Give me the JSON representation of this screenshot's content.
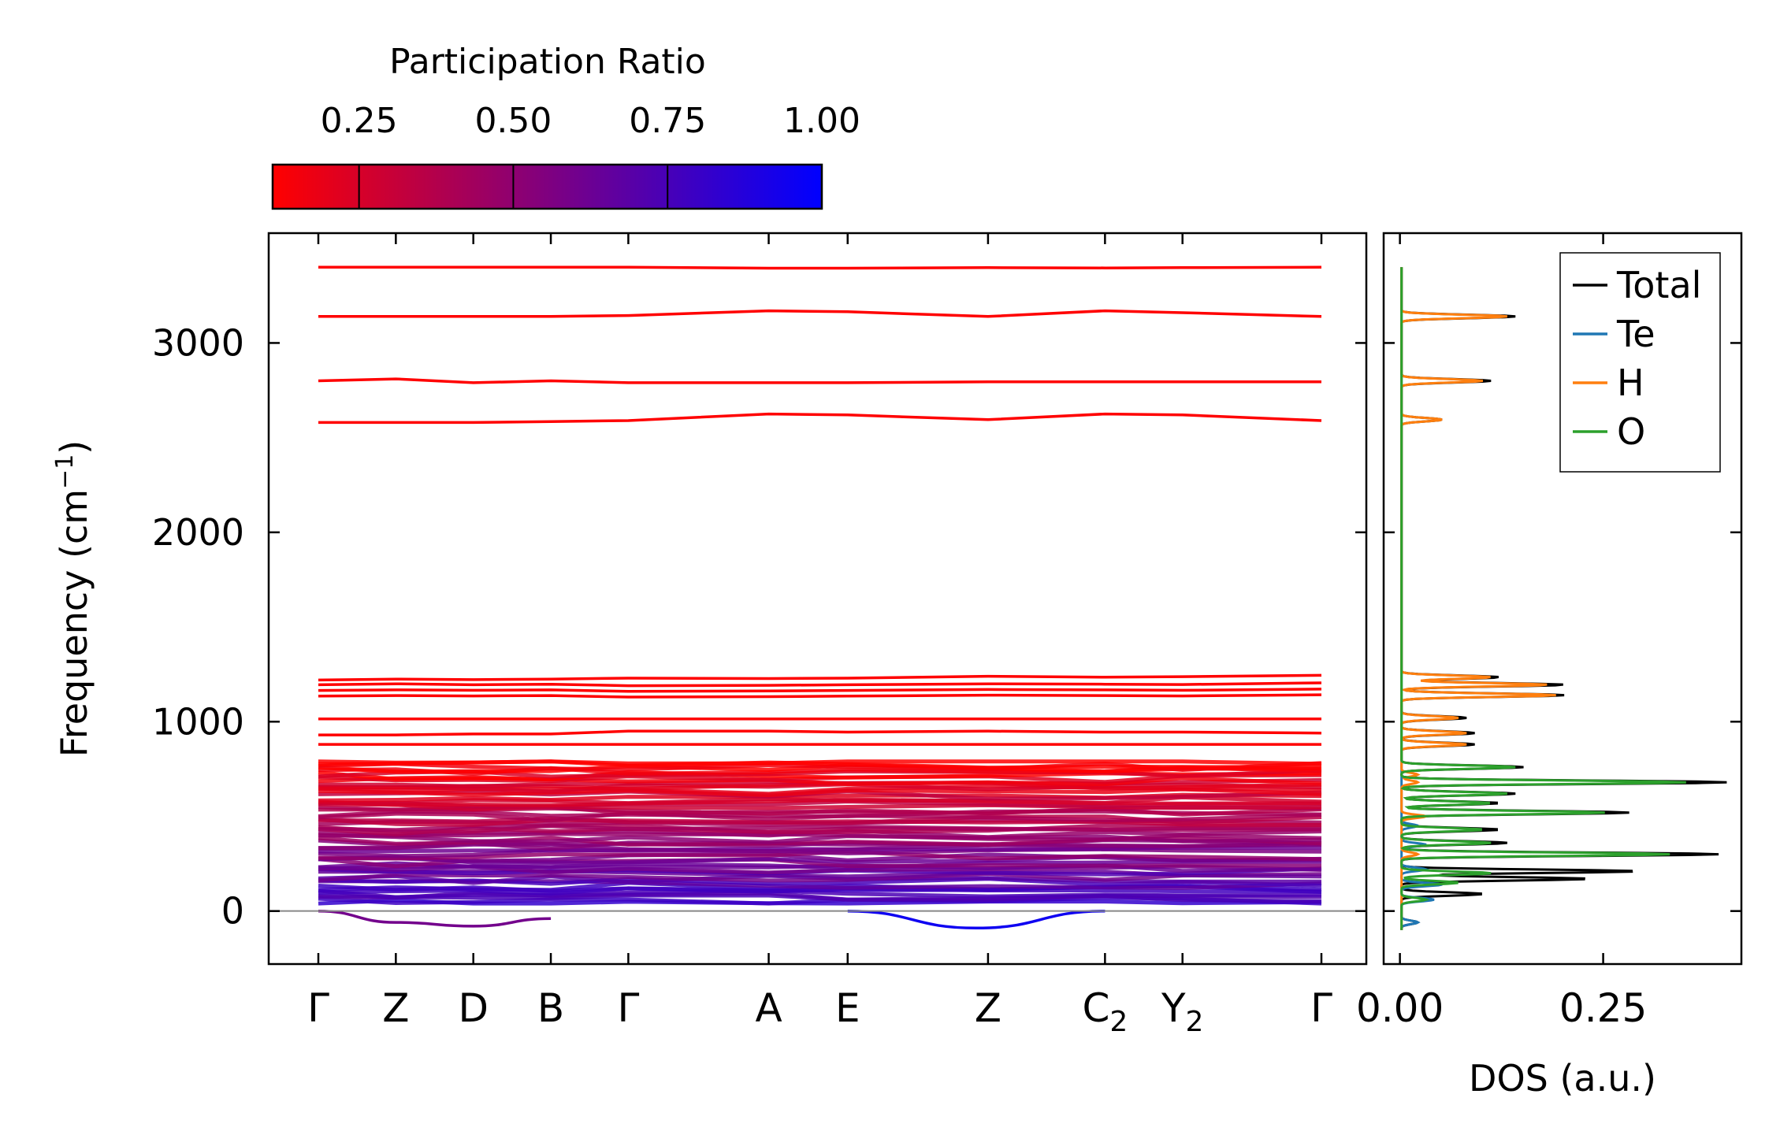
{
  "chart_data": [
    {
      "type": "line",
      "subtype": "phonon-band-structure",
      "ylabel_main": "Frequency (cm",
      "ylabel_sup": "−1",
      "ylabel_close": ")",
      "ylim": [
        -280,
        3580
      ],
      "yticks": [
        0,
        1000,
        2000,
        3000
      ],
      "ytick_labels": [
        "0",
        "1000",
        "2000",
        "3000"
      ],
      "x_positions": [
        0,
        0.53,
        1.06,
        1.59,
        2.12,
        3.08,
        3.62,
        4.58,
        5.38,
        5.91,
        6.86
      ],
      "kpoint_labels": [
        {
          "main": "Γ",
          "sub": ""
        },
        {
          "main": "Z",
          "sub": ""
        },
        {
          "main": "D",
          "sub": ""
        },
        {
          "main": "B",
          "sub": ""
        },
        {
          "main": "Γ",
          "sub": ""
        },
        {
          "main": "A",
          "sub": ""
        },
        {
          "main": "E",
          "sub": ""
        },
        {
          "main": "Z",
          "sub": ""
        },
        {
          "main": "C",
          "sub": "2"
        },
        {
          "main": "Y",
          "sub": "2"
        },
        {
          "main": "Γ",
          "sub": ""
        }
      ],
      "high_bands": [
        {
          "values": [
            3400,
            3400,
            3400,
            3400,
            3400,
            3395,
            3395,
            3398,
            3396,
            3398,
            3400
          ],
          "pr": 0.05
        },
        {
          "values": [
            3140,
            3140,
            3140,
            3140,
            3145,
            3170,
            3165,
            3140,
            3170,
            3160,
            3140
          ],
          "pr": 0.05
        },
        {
          "values": [
            2800,
            2810,
            2790,
            2800,
            2790,
            2790,
            2790,
            2795,
            2795,
            2795,
            2795
          ],
          "pr": 0.05
        },
        {
          "values": [
            2580,
            2580,
            2580,
            2585,
            2590,
            2625,
            2620,
            2595,
            2625,
            2620,
            2590
          ],
          "pr": 0.05
        },
        {
          "values": [
            1220,
            1225,
            1222,
            1225,
            1230,
            1228,
            1230,
            1240,
            1235,
            1238,
            1245
          ],
          "pr": 0.05
        },
        {
          "values": [
            1195,
            1200,
            1195,
            1198,
            1190,
            1192,
            1195,
            1200,
            1198,
            1196,
            1205
          ],
          "pr": 0.05
        },
        {
          "values": [
            1165,
            1168,
            1166,
            1168,
            1160,
            1162,
            1165,
            1170,
            1168,
            1166,
            1172
          ],
          "pr": 0.05
        },
        {
          "values": [
            1135,
            1138,
            1136,
            1138,
            1130,
            1132,
            1135,
            1140,
            1138,
            1136,
            1142
          ],
          "pr": 0.05
        },
        {
          "values": [
            1015,
            1015,
            1015,
            1015,
            1015,
            1015,
            1015,
            1015,
            1015,
            1015,
            1015
          ],
          "pr": 0.05
        },
        {
          "values": [
            930,
            930,
            935,
            935,
            950,
            950,
            945,
            950,
            945,
            945,
            940
          ],
          "pr": 0.05
        },
        {
          "values": [
            880,
            880,
            880,
            880,
            880,
            880,
            880,
            880,
            880,
            880,
            880
          ],
          "pr": 0.05
        }
      ],
      "low_band_region": {
        "min": 40,
        "max": 790,
        "pr_range": [
          0.1,
          0.8
        ]
      },
      "negative_branches": [
        {
          "segment": [
            0,
            1.59
          ],
          "values": [
            0,
            -60,
            -80,
            -40
          ],
          "pr": 0.6
        },
        {
          "segment": [
            3.62,
            5.38
          ],
          "values": [
            0,
            -90,
            0
          ],
          "pr": 0.95
        }
      ],
      "colorbar": {
        "label": "Participation Ratio",
        "range": [
          0.11,
          1.0
        ],
        "ticks": [
          0.25,
          0.5,
          0.75,
          1.0
        ],
        "tick_labels": [
          "0.25",
          "0.50",
          "0.75",
          "1.00"
        ],
        "colors": {
          "low": "#ff0000",
          "high": "#0000ff"
        }
      }
    },
    {
      "type": "line",
      "subtype": "density-of-states",
      "xlabel": "DOS (a.u.)",
      "xlim": [
        -0.02,
        0.42
      ],
      "xticks": [
        0.0,
        0.25
      ],
      "xtick_labels": [
        "0.00",
        "0.25"
      ],
      "ylim": [
        -280,
        3580
      ],
      "legend_position": "top-right",
      "series": [
        {
          "name": "Total",
          "color": "#000000",
          "peaks": [
            [
              -60,
              0.02
            ],
            [
              90,
              0.1
            ],
            [
              170,
              0.23
            ],
            [
              210,
              0.29
            ],
            [
              300,
              0.39
            ],
            [
              360,
              0.13
            ],
            [
              430,
              0.12
            ],
            [
              520,
              0.28
            ],
            [
              570,
              0.12
            ],
            [
              620,
              0.14
            ],
            [
              680,
              0.4
            ],
            [
              760,
              0.15
            ],
            [
              880,
              0.09
            ],
            [
              940,
              0.09
            ],
            [
              1020,
              0.08
            ],
            [
              1140,
              0.2
            ],
            [
              1195,
              0.2
            ],
            [
              1235,
              0.12
            ],
            [
              2595,
              0.05
            ],
            [
              2800,
              0.11
            ],
            [
              3140,
              0.14
            ]
          ]
        },
        {
          "name": "Te",
          "color": "#1f77b4",
          "peaks": [
            [
              -60,
              0.02
            ],
            [
              60,
              0.04
            ],
            [
              140,
              0.05
            ],
            [
              220,
              0.03
            ],
            [
              350,
              0.03
            ],
            [
              450,
              0.02
            ]
          ]
        },
        {
          "name": "H",
          "color": "#ff7f0e",
          "peaks": [
            [
              300,
              0.02
            ],
            [
              500,
              0.03
            ],
            [
              680,
              0.02
            ],
            [
              720,
              0.02
            ],
            [
              880,
              0.08
            ],
            [
              940,
              0.08
            ],
            [
              1020,
              0.07
            ],
            [
              1140,
              0.19
            ],
            [
              1195,
              0.18
            ],
            [
              1235,
              0.11
            ],
            [
              2595,
              0.05
            ],
            [
              2800,
              0.1
            ],
            [
              3140,
              0.13
            ]
          ]
        },
        {
          "name": "O",
          "color": "#2ca02c",
          "peaks": [
            [
              60,
              0.03
            ],
            [
              150,
              0.07
            ],
            [
              200,
              0.11
            ],
            [
              300,
              0.33
            ],
            [
              360,
              0.11
            ],
            [
              430,
              0.1
            ],
            [
              520,
              0.25
            ],
            [
              570,
              0.11
            ],
            [
              620,
              0.13
            ],
            [
              680,
              0.35
            ],
            [
              760,
              0.14
            ]
          ]
        }
      ]
    }
  ]
}
